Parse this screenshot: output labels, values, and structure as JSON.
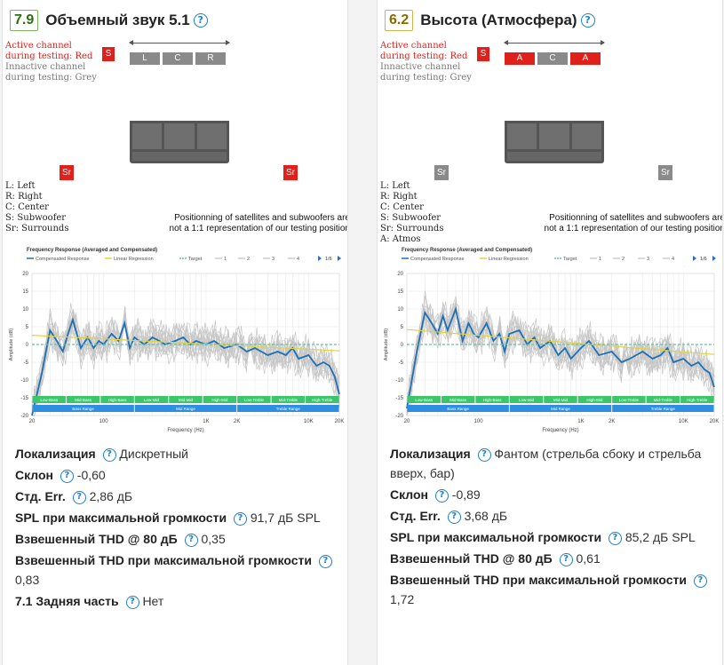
{
  "cards": [
    {
      "score": "7.9",
      "title": "Объемный звук 5.1",
      "legend": {
        "active_line1": "Active channel",
        "active_line2": "during testing: Red",
        "inactive_line1": "Innactive channel",
        "inactive_line2": "during testing: Grey"
      },
      "subwoofer": {
        "label": "S",
        "active": true
      },
      "front_speakers": [
        {
          "label": "L",
          "active": false
        },
        {
          "label": "C",
          "active": false
        },
        {
          "label": "R",
          "active": false
        }
      ],
      "surrounds": [
        {
          "label": "Sr",
          "active": true
        },
        {
          "label": "Sr",
          "active": true
        }
      ],
      "key": [
        "L: Left",
        "R: Right",
        "C: Center",
        "S: Subwoofer",
        "Sr: Surrounds"
      ],
      "disclaimer": [
        "Positionning of satellites and subwoofers are",
        "not a 1:1 representation of our testing position"
      ],
      "specs": [
        {
          "label": "Локализация",
          "value": "Дискретный",
          "help": true
        },
        {
          "label": "Склон",
          "value": "-0,60",
          "help": true
        },
        {
          "label": "Стд. Err.",
          "value": "2,86 дБ",
          "help": true
        },
        {
          "label": "SPL при максимальной громкости",
          "value": "91,7 дБ SPL",
          "help": true
        },
        {
          "label": "Взвешенный THD @ 80 дБ",
          "value": "0,35",
          "help": true
        },
        {
          "label": "Взвешенный THD при максимальной громкости",
          "value": "0,83",
          "help": true,
          "block": true
        },
        {
          "label": "7.1 Задняя часть",
          "value": "Нет",
          "help": true
        }
      ],
      "chart_data": {
        "type": "line",
        "title": "Frequency Response (Averaged and Compensated)",
        "xlabel": "Frequency (Hz)",
        "ylabel": "Amplitude (dB)",
        "x_scale": "log",
        "xlim": [
          20,
          20000
        ],
        "ylim": [
          -20,
          20
        ],
        "x_ticks": [
          "20",
          "100",
          "1K",
          "2K",
          "10K",
          "20K"
        ],
        "y_ticks": [
          "20",
          "15",
          "10",
          "5",
          "0",
          "-5",
          "-10",
          "-15",
          "-20"
        ],
        "legend_items": [
          "Compensated Response",
          "Linear Regression",
          "Target",
          "1",
          "2",
          "3",
          "4"
        ],
        "legend_page": "1/6",
        "bands_top": [
          "Low-Bass",
          "Mid-Bass",
          "High-Bass",
          "Low-Mid",
          "Mid-Mid",
          "High-Mid",
          "Low-Treble",
          "Mid-Treble",
          "High-Treble"
        ],
        "bands_bottom": [
          "Bass Range",
          "Mid Range",
          "Treble Range"
        ],
        "series": [
          {
            "name": "Compensated Response",
            "color": "#1f6fb5",
            "x": [
              20,
              25,
              30,
              35,
              40,
              45,
              50,
              60,
              70,
              80,
              90,
              100,
              120,
              140,
              160,
              180,
              200,
              250,
              300,
              350,
              400,
              500,
              600,
              700,
              800,
              1000,
              1200,
              1500,
              2000,
              2500,
              3000,
              4000,
              5000,
              6000,
              7000,
              8000,
              10000,
              12000,
              14000,
              16000,
              18000,
              20000
            ],
            "y": [
              -20,
              -8,
              4,
              1,
              -2,
              3,
              7,
              -1,
              2,
              -1,
              1,
              0,
              3,
              1,
              6,
              -1,
              2,
              0,
              2,
              1,
              0,
              1,
              2,
              0,
              1,
              0,
              1,
              -1,
              0,
              -2,
              -1,
              -3,
              -2,
              -3,
              -1,
              -4,
              -3,
              -6,
              -5,
              -6,
              -9,
              -14
            ]
          },
          {
            "name": "Linear Regression",
            "color": "#e0d243",
            "x": [
              20,
              20000
            ],
            "y": [
              2.6,
              -1.8
            ]
          },
          {
            "name": "Target",
            "color": "#66c2a4",
            "x": [
              20,
              20000
            ],
            "y": [
              0,
              0
            ]
          }
        ]
      }
    },
    {
      "score": "6.2",
      "title": "Высота (Атмосфера)",
      "legend": {
        "active_line1": "Active channel",
        "active_line2": "during testing: Red",
        "inactive_line1": "Innactive channel",
        "inactive_line2": "during testing: Grey"
      },
      "subwoofer": {
        "label": "S",
        "active": true
      },
      "front_speakers": [
        {
          "label": "A",
          "active": true
        },
        {
          "label": "C",
          "active": false
        },
        {
          "label": "A",
          "active": true
        }
      ],
      "surrounds": [
        {
          "label": "Sr",
          "active": false
        },
        {
          "label": "Sr",
          "active": false
        }
      ],
      "key": [
        "L: Left",
        "R: Right",
        "C: Center",
        "S: Subwoofer",
        "Sr: Surrounds",
        "A: Atmos"
      ],
      "disclaimer": [
        "Positionning of satellites and subwoofers are",
        "not a 1:1 representation of our testing position"
      ],
      "specs": [
        {
          "label": "Локализация",
          "value": "Фантом (стрельба сбоку и стрельба вверх, бар)",
          "help": true
        },
        {
          "label": "Склон",
          "value": "-0,89",
          "help": true
        },
        {
          "label": "Стд. Err.",
          "value": "3,68 дБ",
          "help": true
        },
        {
          "label": "SPL при максимальной громкости",
          "value": "85,2 дБ SPL",
          "help": true
        },
        {
          "label": "Взвешенный THD @ 80 дБ",
          "value": "0,61",
          "help": true
        },
        {
          "label": "Взвешенный THD при максимальной громкости",
          "value": "1,72",
          "help": true,
          "block": true
        }
      ],
      "chart_data": {
        "type": "line",
        "title": "Frequency Response (Averaged and Compensated)",
        "xlabel": "Frequency (Hz)",
        "ylabel": "Amplitude (dB)",
        "x_scale": "log",
        "xlim": [
          20,
          20000
        ],
        "ylim": [
          -20,
          20
        ],
        "x_ticks": [
          "20",
          "100",
          "1K",
          "2K",
          "10K",
          "20K"
        ],
        "y_ticks": [
          "20",
          "15",
          "10",
          "5",
          "0",
          "-5",
          "-10",
          "-15",
          "-20"
        ],
        "legend_items": [
          "Compensated Response",
          "Linear Regression",
          "Target",
          "1",
          "2",
          "3",
          "4"
        ],
        "legend_page": "1/6",
        "bands_top": [
          "Low-Bass",
          "Mid-Bass",
          "High-Bass",
          "Low-Mid",
          "Mid-Mid",
          "High-Mid",
          "Low-Treble",
          "Mid-Treble",
          "High-Treble"
        ],
        "bands_bottom": [
          "Bass Range",
          "Mid Range",
          "Treble Range"
        ],
        "series": [
          {
            "name": "Compensated Response",
            "color": "#1f6fb5",
            "x": [
              20,
              25,
              30,
              35,
              40,
              45,
              50,
              60,
              70,
              80,
              90,
              100,
              120,
              140,
              160,
              180,
              200,
              250,
              300,
              350,
              400,
              500,
              600,
              700,
              800,
              1000,
              1200,
              1500,
              2000,
              2500,
              3000,
              4000,
              5000,
              6000,
              7000,
              8000,
              10000,
              12000,
              14000,
              16000,
              18000,
              20000
            ],
            "y": [
              -18,
              -2,
              9,
              6,
              3,
              8,
              4,
              10,
              1,
              6,
              3,
              2,
              6,
              1,
              3,
              -2,
              3,
              4,
              0,
              2,
              -1,
              1,
              -3,
              -1,
              -4,
              -1,
              1,
              -3,
              -2,
              -5,
              -4,
              -2,
              -4,
              -3,
              -1,
              -5,
              -4,
              -6,
              -5,
              -7,
              -8,
              -12
            ]
          },
          {
            "name": "Linear Regression",
            "color": "#e0d243",
            "x": [
              20,
              20000
            ],
            "y": [
              4.2,
              -2.8
            ]
          },
          {
            "name": "Target",
            "color": "#66c2a4",
            "x": [
              20,
              20000
            ],
            "y": [
              0,
              0
            ]
          }
        ]
      }
    }
  ]
}
